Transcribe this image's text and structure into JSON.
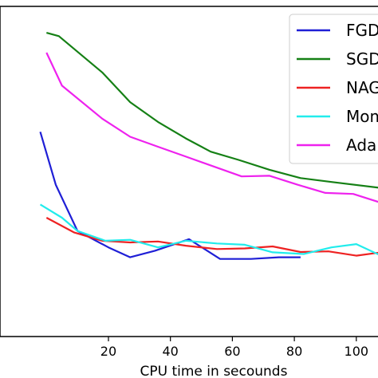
{
  "chart_data": {
    "type": "line",
    "title": "",
    "xlabel": "CPU time in secounds",
    "ylabel": "",
    "xlim": [
      -15,
      107
    ],
    "ylim": [
      0,
      1
    ],
    "x_ticks": [
      20,
      40,
      60,
      80,
      100
    ],
    "grid": false,
    "legend_position": "top-right",
    "series": [
      {
        "name": "FGD",
        "color": "#1f1fd6",
        "points": [
          [
            -2,
            0.62
          ],
          [
            3,
            0.46
          ],
          [
            10,
            0.32
          ],
          [
            20,
            0.27
          ],
          [
            27,
            0.24
          ],
          [
            35,
            0.26
          ],
          [
            46,
            0.295
          ],
          [
            56,
            0.235
          ],
          [
            66,
            0.235
          ],
          [
            75,
            0.24
          ],
          [
            82,
            0.24
          ]
        ]
      },
      {
        "name": "SGD",
        "color": "#158015",
        "points": [
          [
            0,
            0.92
          ],
          [
            4,
            0.91
          ],
          [
            18,
            0.8
          ],
          [
            27,
            0.71
          ],
          [
            36,
            0.65
          ],
          [
            45,
            0.6
          ],
          [
            53,
            0.56
          ],
          [
            62,
            0.535
          ],
          [
            72,
            0.505
          ],
          [
            82,
            0.48
          ],
          [
            92,
            0.468
          ],
          [
            108,
            0.45
          ]
        ]
      },
      {
        "name": "NAG",
        "color": "#ee2222",
        "points": [
          [
            0,
            0.36
          ],
          [
            9,
            0.315
          ],
          [
            18,
            0.29
          ],
          [
            27,
            0.285
          ],
          [
            36,
            0.288
          ],
          [
            45,
            0.275
          ],
          [
            55,
            0.265
          ],
          [
            64,
            0.267
          ],
          [
            73,
            0.273
          ],
          [
            82,
            0.256
          ],
          [
            91,
            0.258
          ],
          [
            100,
            0.245
          ],
          [
            108,
            0.255
          ]
        ]
      },
      {
        "name": "Momentum",
        "color": "#22ecec",
        "points": [
          [
            -2,
            0.4
          ],
          [
            5,
            0.36
          ],
          [
            10,
            0.32
          ],
          [
            19,
            0.29
          ],
          [
            27,
            0.293
          ],
          [
            36,
            0.27
          ],
          [
            45,
            0.29
          ],
          [
            55,
            0.282
          ],
          [
            64,
            0.278
          ],
          [
            73,
            0.255
          ],
          [
            83,
            0.25
          ],
          [
            92,
            0.27
          ],
          [
            100,
            0.28
          ],
          [
            108,
            0.245
          ]
        ]
      },
      {
        "name": "Adam",
        "color": "#ee22ee",
        "points": [
          [
            0,
            0.86
          ],
          [
            5,
            0.76
          ],
          [
            18,
            0.66
          ],
          [
            27,
            0.605
          ],
          [
            36,
            0.575
          ],
          [
            45,
            0.545
          ],
          [
            54,
            0.515
          ],
          [
            63,
            0.485
          ],
          [
            72,
            0.487
          ],
          [
            81,
            0.46
          ],
          [
            90,
            0.435
          ],
          [
            99,
            0.432
          ],
          [
            108,
            0.405
          ]
        ]
      }
    ],
    "legend_entries": [
      "FGD",
      "SGD",
      "NAG",
      "Mom",
      "Ada"
    ]
  }
}
